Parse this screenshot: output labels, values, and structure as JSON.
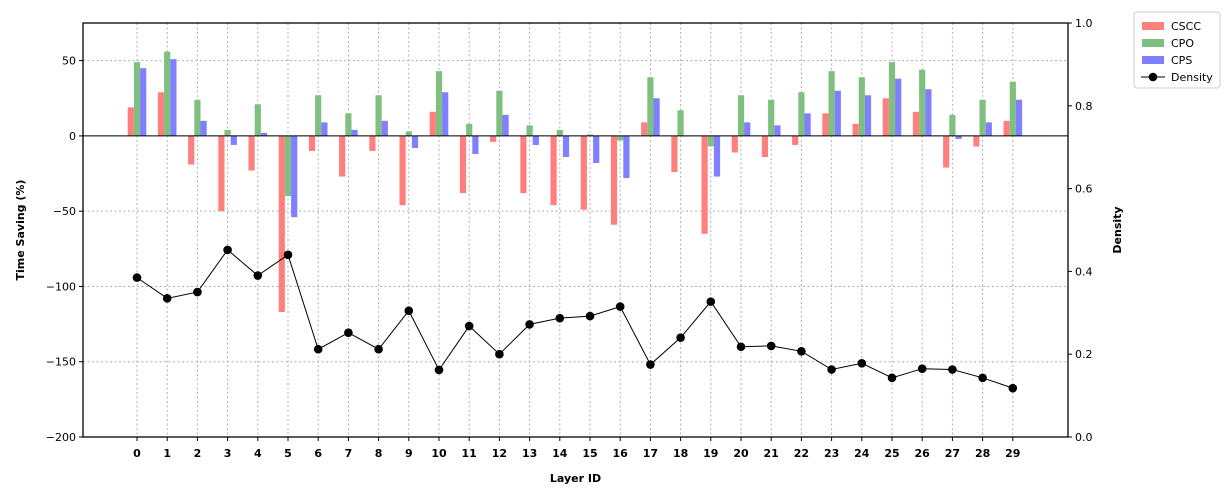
{
  "chart_data": {
    "type": "bar",
    "xlabel": "Layer ID",
    "ylabel": "Time Saving (%)",
    "ylabel_right": "Density",
    "ylim": [
      -200,
      75
    ],
    "ylim_right": [
      0.0,
      1.0
    ],
    "yticks": [
      -200,
      -150,
      -100,
      -50,
      0,
      50
    ],
    "yticks_right": [
      "0.0",
      "0.2",
      "0.4",
      "0.6",
      "0.8",
      "1.0"
    ],
    "grid": true,
    "legend_position": "outside top-right",
    "categories": [
      "0",
      "1",
      "2",
      "3",
      "4",
      "5",
      "6",
      "7",
      "8",
      "9",
      "10",
      "11",
      "12",
      "13",
      "14",
      "15",
      "16",
      "17",
      "18",
      "19",
      "20",
      "21",
      "22",
      "23",
      "24",
      "25",
      "26",
      "27",
      "28",
      "29"
    ],
    "series": [
      {
        "name": "CSCC",
        "kind": "bar",
        "color": "#ff7f7f",
        "values": [
          19,
          29,
          -19,
          -50,
          -23,
          -117,
          -10,
          -27,
          -10,
          -46,
          16,
          -38,
          -4,
          -38,
          -46,
          -49,
          -59,
          9,
          -24,
          -65,
          -11,
          -14,
          -6,
          15,
          8,
          25,
          16,
          -21,
          -7,
          10
        ]
      },
      {
        "name": "CPO",
        "kind": "bar",
        "color": "#7fbf7f",
        "values": [
          49,
          56,
          24,
          4,
          21,
          -40,
          27,
          15,
          27,
          3,
          43,
          8,
          30,
          7,
          4,
          1,
          -3,
          39,
          17,
          -7,
          27,
          24,
          29,
          43,
          39,
          49,
          44,
          14,
          24,
          36
        ]
      },
      {
        "name": "CPS",
        "kind": "bar",
        "color": "#7f7fff",
        "values": [
          45,
          51,
          10,
          -6,
          2,
          -54,
          9,
          4,
          10,
          -8,
          29,
          -12,
          14,
          -6,
          -14,
          -18,
          -28,
          25,
          0,
          -27,
          9,
          7,
          15,
          30,
          27,
          38,
          31,
          -2,
          9,
          24
        ]
      },
      {
        "name": "Density",
        "kind": "line",
        "axis": "right",
        "color": "#000000",
        "values": [
          0.385,
          0.335,
          0.35,
          0.452,
          0.39,
          0.44,
          0.212,
          0.252,
          0.212,
          0.305,
          0.162,
          0.268,
          0.2,
          0.272,
          0.287,
          0.292,
          0.315,
          0.175,
          0.24,
          0.327,
          0.218,
          0.22,
          0.207,
          0.163,
          0.178,
          0.143,
          0.165,
          0.163,
          0.143,
          0.118
        ]
      }
    ]
  }
}
